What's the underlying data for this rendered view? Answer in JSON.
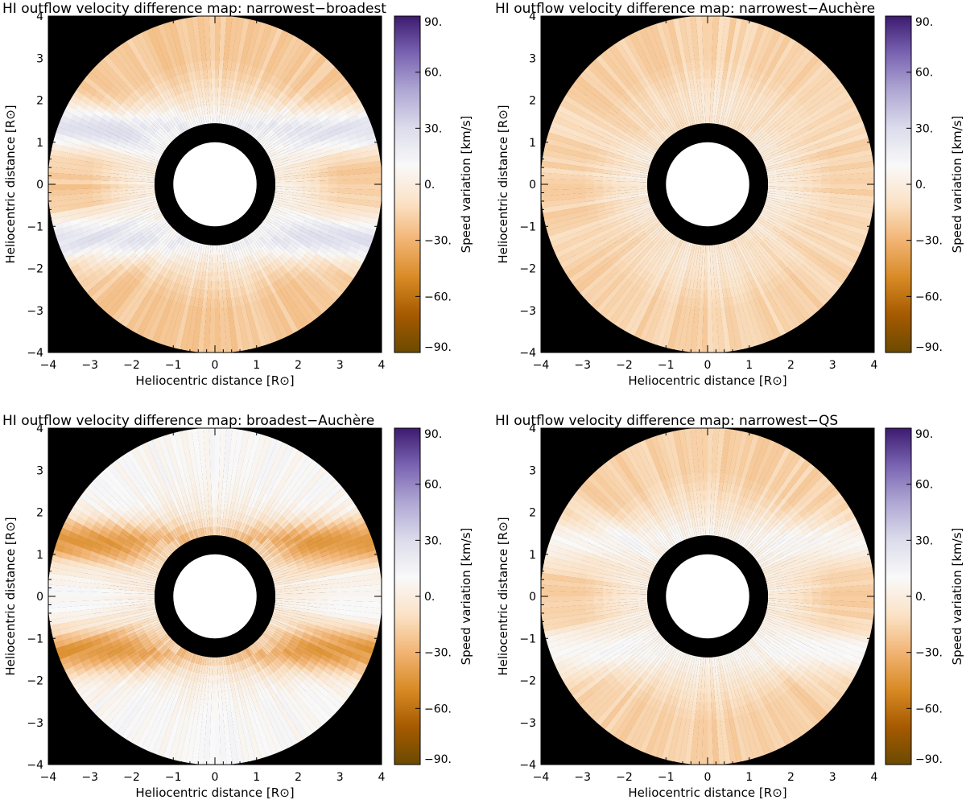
{
  "chart_data": [
    {
      "type": "heatmap",
      "title": "HI outflow velocity difference map: narrowest−broadest",
      "xlabel": "Heliocentric distance [R⊙]",
      "ylabel": "Heliocentric distance [R⊙]",
      "xlim": [
        -4,
        4
      ],
      "ylim": [
        -4,
        4
      ],
      "xticks": [
        "−4",
        "−3",
        "−2",
        "−1",
        "0",
        "1",
        "2",
        "3",
        "4"
      ],
      "yticks": [
        "4",
        "3",
        "2",
        "1",
        "0",
        "−1",
        "−2",
        "−3",
        "−4"
      ],
      "occulter_radius": 1.45,
      "disk_radius": 1.0,
      "field_radius": 4.0,
      "colorbar": {
        "label": "Speed variation [km/s]",
        "range": [
          -90,
          90
        ],
        "ticks": [
          "90.",
          "60.",
          "30.",
          "0.",
          "−30.",
          "−60.",
          "−90."
        ]
      },
      "pattern": {
        "outer": -20,
        "streamer": 25,
        "inner": 4
      }
    },
    {
      "type": "heatmap",
      "title": "HI outflow velocity difference map: narrowest−Auchère",
      "xlabel": "Heliocentric distance [R⊙]",
      "ylabel": "Heliocentric distance [R⊙]",
      "xlim": [
        -4,
        4
      ],
      "ylim": [
        -4,
        4
      ],
      "xticks": [
        "−4",
        "−3",
        "−2",
        "−1",
        "0",
        "1",
        "2",
        "3",
        "4"
      ],
      "yticks": [
        "4",
        "3",
        "2",
        "1",
        "0",
        "−1",
        "−2",
        "−3",
        "−4"
      ],
      "occulter_radius": 1.45,
      "disk_radius": 1.0,
      "field_radius": 4.0,
      "colorbar": {
        "label": "Speed variation [km/s]",
        "range": [
          -90,
          90
        ],
        "ticks": [
          "90.",
          "60.",
          "30.",
          "0.",
          "−30.",
          "−60.",
          "−90."
        ]
      },
      "pattern": {
        "outer": -16,
        "streamer": -13,
        "inner": 1
      }
    },
    {
      "type": "heatmap",
      "title": "HI outflow velocity difference map: broadest−Auchère",
      "xlabel": "Heliocentric distance [R⊙]",
      "ylabel": "Heliocentric distance [R⊙]",
      "xlim": [
        -4,
        4
      ],
      "ylim": [
        -4,
        4
      ],
      "xticks": [
        "−4",
        "−3",
        "−2",
        "−1",
        "0",
        "1",
        "2",
        "3",
        "4"
      ],
      "yticks": [
        "4",
        "3",
        "2",
        "1",
        "0",
        "−1",
        "−2",
        "−3",
        "−4"
      ],
      "occulter_radius": 1.45,
      "disk_radius": 1.0,
      "field_radius": 4.0,
      "colorbar": {
        "label": "Speed variation [km/s]",
        "range": [
          -90,
          90
        ],
        "ticks": [
          "90.",
          "60.",
          "30.",
          "0.",
          "−30.",
          "−60.",
          "−90."
        ]
      },
      "pattern": {
        "outer": 9,
        "streamer": -42,
        "inner": 2
      }
    },
    {
      "type": "heatmap",
      "title": "HI outflow velocity difference map: narrowest−QS",
      "xlabel": "Heliocentric distance [R⊙]",
      "ylabel": "Heliocentric distance [R⊙]",
      "xlim": [
        -4,
        4
      ],
      "ylim": [
        -4,
        4
      ],
      "xticks": [
        "−4",
        "−3",
        "−2",
        "−1",
        "0",
        "1",
        "2",
        "3",
        "4"
      ],
      "yticks": [
        "4",
        "3",
        "2",
        "1",
        "0",
        "−1",
        "−2",
        "−3",
        "−4"
      ],
      "occulter_radius": 1.45,
      "disk_radius": 1.0,
      "field_radius": 4.0,
      "colorbar": {
        "label": "Speed variation [km/s]",
        "range": [
          -90,
          90
        ],
        "ticks": [
          "90.",
          "60.",
          "30.",
          "0.",
          "−30.",
          "−60.",
          "−90."
        ]
      },
      "pattern": {
        "outer": -17,
        "streamer": 10,
        "inner": 3
      }
    }
  ],
  "colors": {
    "background": "#000000",
    "disk": "#ffffff",
    "colormap": [
      "#6b4a00",
      "#a55a00",
      "#d88a24",
      "#f2b474",
      "#fbe2c6",
      "#f9f9f9",
      "#dcdcec",
      "#b0a8d4",
      "#7a64b2",
      "#3d1a70"
    ]
  }
}
